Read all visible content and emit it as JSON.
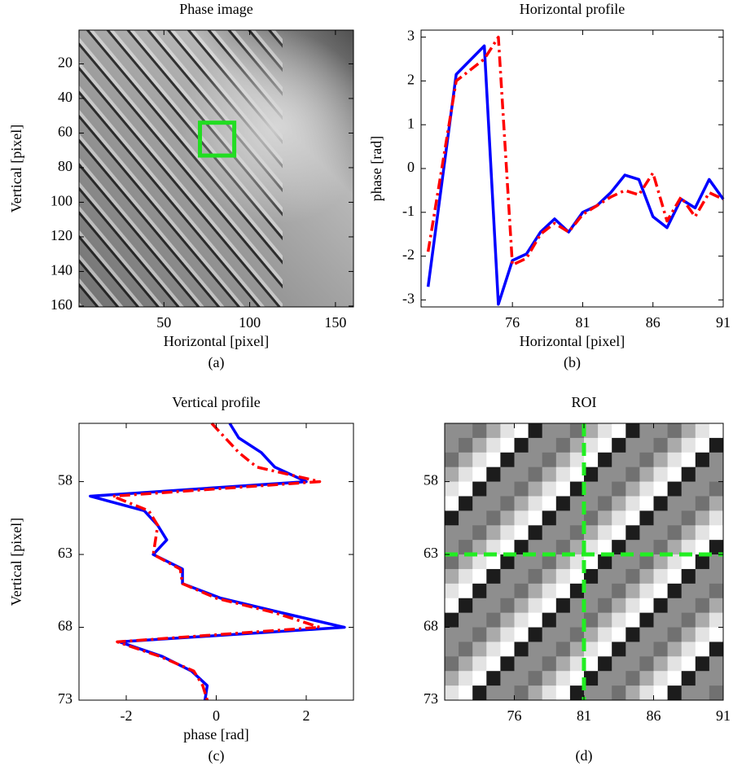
{
  "chart_data": [
    {
      "type": "image",
      "title": "Phase image",
      "xlabel": "Horizontal [pixel]",
      "ylabel": "Vertical [pixel]",
      "caption": "(a)",
      "xlim": [
        0.5,
        160.5
      ],
      "ylim": [
        0.5,
        160.5
      ],
      "yreverse": true,
      "xticks": [
        50,
        100,
        150
      ],
      "yticks": [
        20,
        40,
        60,
        80,
        100,
        120,
        140,
        160
      ],
      "roi": {
        "x": [
          71,
          91
        ],
        "y": [
          54,
          73
        ],
        "color": "#22dd22"
      }
    },
    {
      "type": "line",
      "title": "Horizontal profile",
      "xlabel": "Horizontal [pixel]",
      "ylabel": "phase [rad]",
      "caption": "(b)",
      "xlim": [
        69.5,
        91
      ],
      "ylim": [
        -3.16,
        3.16
      ],
      "xticks": [
        76,
        81,
        86,
        91
      ],
      "yticks": [
        -3,
        -2,
        -1,
        0,
        1,
        2,
        3
      ],
      "x": [
        70,
        72,
        74,
        75,
        76,
        77,
        78,
        79,
        80,
        81,
        82,
        83,
        84,
        85,
        86,
        87,
        88,
        89,
        90,
        91
      ],
      "series": [
        {
          "color": "#0000ff",
          "style": "solid",
          "values": [
            -2.7,
            2.15,
            2.8,
            -3.1,
            -2.1,
            -1.95,
            -1.45,
            -1.15,
            -1.45,
            -1.0,
            -0.85,
            -0.55,
            -0.15,
            -0.25,
            -1.1,
            -1.35,
            -0.7,
            -0.9,
            -0.25,
            -0.7
          ]
        },
        {
          "color": "#ff0000",
          "style": "dashdot",
          "values": [
            -1.9,
            2.0,
            2.5,
            3.0,
            -2.2,
            -2.05,
            -1.5,
            -1.25,
            -1.45,
            -1.05,
            -0.85,
            -0.65,
            -0.5,
            -0.6,
            -0.1,
            -1.2,
            -0.65,
            -1.1,
            -0.55,
            -0.7
          ]
        }
      ]
    },
    {
      "type": "line",
      "title": "Vertical profile",
      "xlabel": "phase [rad]",
      "ylabel": "Vertical [pixel]",
      "caption": "(c)",
      "xlim": [
        -3.05,
        3.05
      ],
      "ylim": [
        54,
        73
      ],
      "yreverse": true,
      "xticks": [
        -2,
        0,
        2
      ],
      "yticks": [
        58,
        63,
        68,
        73
      ],
      "y": [
        54,
        55,
        56,
        57,
        58,
        59,
        60,
        61,
        62,
        63,
        64,
        65,
        66,
        67,
        68,
        69,
        70,
        71,
        72,
        73
      ],
      "series": [
        {
          "color": "#0000ff",
          "style": "solid",
          "values": [
            0.3,
            0.5,
            1.0,
            1.3,
            2.0,
            -2.8,
            -1.6,
            -1.3,
            -1.1,
            -1.4,
            -0.75,
            -0.75,
            0.1,
            1.45,
            2.85,
            -2.15,
            -1.2,
            -0.55,
            -0.2,
            -0.25
          ]
        },
        {
          "color": "#ff0000",
          "style": "dashdot",
          "values": [
            -0.1,
            0.2,
            0.5,
            0.9,
            2.3,
            -2.3,
            -1.5,
            -1.3,
            -1.35,
            -1.4,
            -0.8,
            -0.75,
            0.0,
            1.3,
            2.3,
            -2.2,
            -1.25,
            -0.5,
            -0.3,
            -0.2
          ]
        }
      ]
    },
    {
      "type": "heatmap",
      "title": "ROI",
      "caption": "(d)",
      "xlim": [
        71,
        91
      ],
      "ylim": [
        54,
        73
      ],
      "yreverse": true,
      "xticks": [
        76,
        81,
        86,
        91
      ],
      "yticks": [
        58,
        63,
        68,
        73
      ],
      "clim": [
        0,
        9
      ],
      "crosshair": {
        "x": 81,
        "y": 63,
        "color": "#22ee22"
      },
      "z": [
        [
          5,
          5,
          4,
          6,
          8,
          9,
          1,
          5,
          5,
          4,
          6,
          8,
          9,
          1,
          5,
          5,
          4,
          6,
          8,
          9
        ],
        [
          5,
          4,
          6,
          8,
          9,
          1,
          5,
          5,
          4,
          6,
          8,
          9,
          1,
          5,
          5,
          4,
          6,
          8,
          9,
          1
        ],
        [
          4,
          6,
          8,
          9,
          1,
          5,
          5,
          4,
          6,
          8,
          9,
          1,
          5,
          5,
          4,
          6,
          8,
          9,
          1,
          5
        ],
        [
          6,
          8,
          9,
          1,
          5,
          5,
          4,
          6,
          8,
          9,
          1,
          5,
          5,
          4,
          6,
          8,
          9,
          1,
          5,
          5
        ],
        [
          8,
          9,
          1,
          5,
          5,
          4,
          6,
          8,
          9,
          1,
          5,
          5,
          4,
          6,
          8,
          9,
          1,
          5,
          5,
          4
        ],
        [
          9,
          1,
          5,
          5,
          4,
          6,
          8,
          9,
          1,
          5,
          5,
          4,
          6,
          8,
          9,
          1,
          5,
          5,
          4,
          6
        ],
        [
          1,
          5,
          5,
          4,
          6,
          8,
          9,
          1,
          5,
          5,
          4,
          6,
          8,
          9,
          1,
          5,
          5,
          4,
          6,
          8
        ],
        [
          5,
          5,
          4,
          6,
          8,
          9,
          1,
          5,
          5,
          4,
          6,
          8,
          9,
          1,
          5,
          5,
          4,
          6,
          8,
          9
        ],
        [
          5,
          4,
          6,
          8,
          9,
          1,
          5,
          5,
          4,
          6,
          8,
          9,
          1,
          5,
          5,
          4,
          6,
          8,
          9,
          1
        ],
        [
          4,
          6,
          8,
          9,
          1,
          5,
          5,
          4,
          6,
          8,
          9,
          1,
          5,
          5,
          4,
          6,
          8,
          9,
          1,
          5
        ],
        [
          6,
          8,
          9,
          1,
          5,
          5,
          4,
          6,
          8,
          9,
          1,
          5,
          5,
          4,
          6,
          8,
          9,
          1,
          5,
          5
        ],
        [
          8,
          9,
          1,
          5,
          5,
          4,
          6,
          8,
          9,
          1,
          5,
          5,
          4,
          6,
          8,
          9,
          1,
          5,
          5,
          4
        ],
        [
          9,
          1,
          5,
          5,
          4,
          6,
          8,
          9,
          1,
          5,
          5,
          4,
          6,
          8,
          9,
          1,
          5,
          5,
          4,
          6
        ],
        [
          1,
          5,
          5,
          4,
          6,
          8,
          9,
          1,
          5,
          5,
          4,
          6,
          8,
          9,
          1,
          5,
          5,
          4,
          6,
          8
        ],
        [
          5,
          5,
          4,
          6,
          8,
          9,
          1,
          5,
          5,
          4,
          6,
          8,
          9,
          1,
          5,
          5,
          4,
          6,
          8,
          9
        ],
        [
          5,
          4,
          6,
          8,
          9,
          1,
          5,
          5,
          4,
          6,
          8,
          9,
          1,
          5,
          5,
          4,
          6,
          8,
          9,
          1
        ],
        [
          4,
          6,
          8,
          9,
          1,
          5,
          5,
          4,
          6,
          8,
          9,
          1,
          5,
          5,
          4,
          6,
          8,
          9,
          1,
          5
        ],
        [
          6,
          8,
          9,
          1,
          5,
          5,
          4,
          6,
          8,
          9,
          1,
          5,
          5,
          4,
          6,
          8,
          9,
          1,
          5,
          5
        ],
        [
          8,
          9,
          1,
          5,
          5,
          4,
          6,
          8,
          9,
          1,
          5,
          5,
          4,
          6,
          8,
          9,
          1,
          5,
          5,
          4
        ]
      ]
    }
  ]
}
